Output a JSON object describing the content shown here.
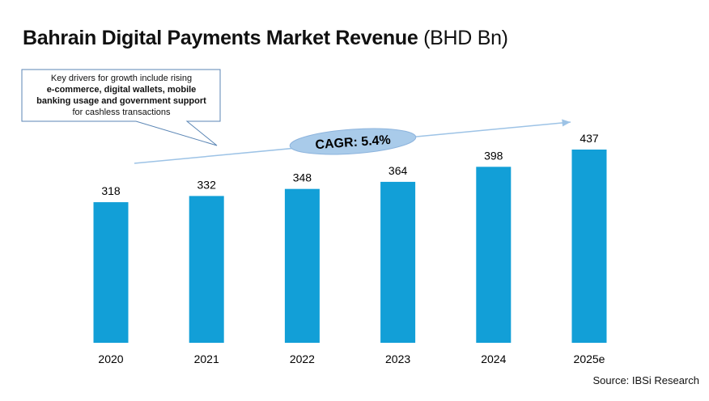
{
  "title": "Bahrain Digital Payments Market Revenue",
  "title_unit": "(BHD Bn)",
  "source": "Source: IBSi Research",
  "callout": {
    "line1": "Key drivers for growth include rising",
    "line2": "e-commerce, digital wallets, mobile",
    "line3": "banking usage and government support",
    "line4": "for cashless transactions"
  },
  "cagr_label": "CAGR: 5.4%",
  "colors": {
    "bar": "#129FD7",
    "arrow": "#9DC3E6",
    "ellipse": "#A9CBEA",
    "callout_border": "#5B86B5"
  },
  "chart_data": {
    "type": "bar",
    "title": "Bahrain Digital Payments Market Revenue (BHD Bn)",
    "categories": [
      "2020",
      "2021",
      "2022",
      "2023",
      "2024",
      "2025e"
    ],
    "values": [
      318,
      332,
      348,
      364,
      398,
      437
    ],
    "xlabel": "",
    "ylabel": "BHD Bn",
    "ylim": [
      0,
      437
    ],
    "grid": false,
    "data_labels": true
  }
}
